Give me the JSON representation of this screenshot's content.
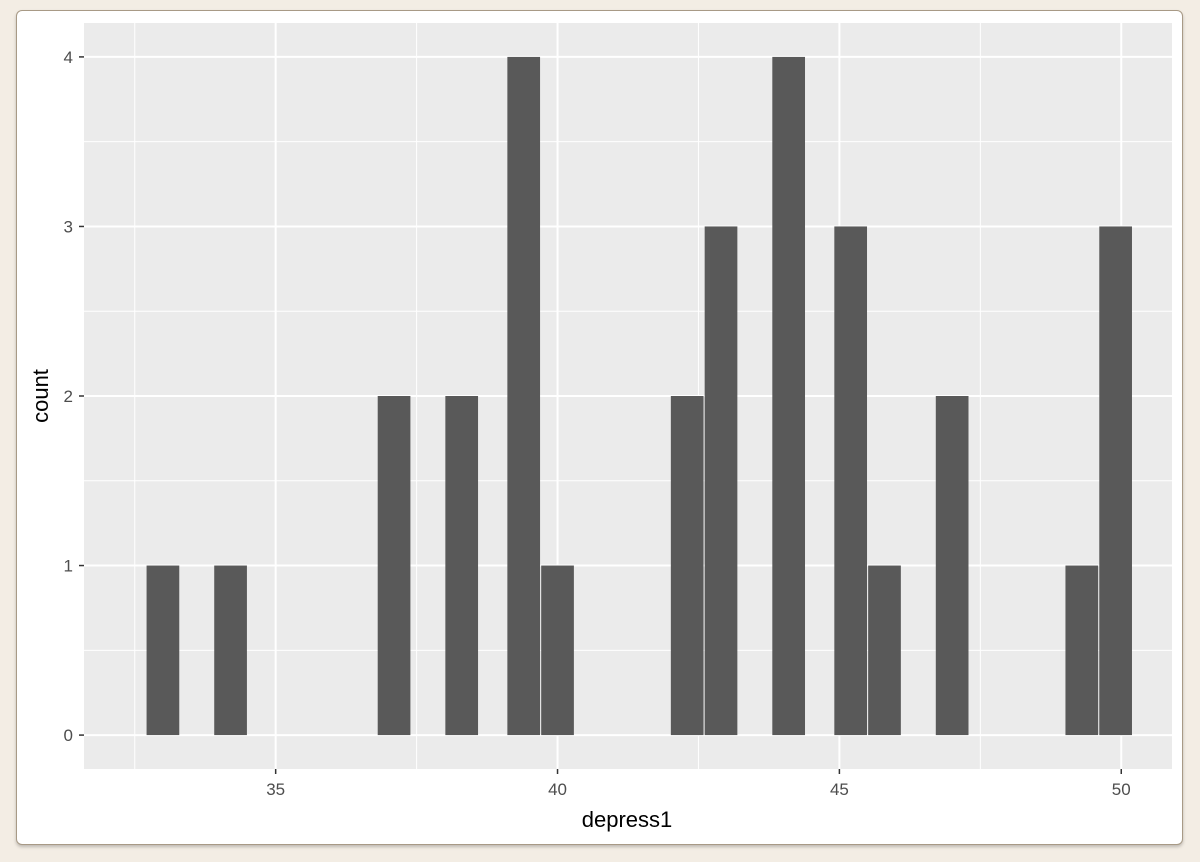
{
  "chart_data": {
    "type": "bar",
    "subtype": "histogram",
    "xlabel": "depress1",
    "ylabel": "count",
    "x_ticks": [
      35,
      40,
      45,
      50
    ],
    "y_ticks": [
      0,
      1,
      2,
      3,
      4
    ],
    "xlim": [
      31.6,
      50.9
    ],
    "ylim": [
      -0.2,
      4.2
    ],
    "bin_width": 0.58,
    "bins": [
      {
        "x": 33.0,
        "count": 1
      },
      {
        "x": 34.2,
        "count": 1
      },
      {
        "x": 37.1,
        "count": 2
      },
      {
        "x": 38.3,
        "count": 2
      },
      {
        "x": 39.4,
        "count": 4
      },
      {
        "x": 40.0,
        "count": 1
      },
      {
        "x": 42.3,
        "count": 2
      },
      {
        "x": 42.9,
        "count": 3
      },
      {
        "x": 44.1,
        "count": 4
      },
      {
        "x": 45.2,
        "count": 3
      },
      {
        "x": 45.8,
        "count": 1
      },
      {
        "x": 47.0,
        "count": 2
      },
      {
        "x": 49.3,
        "count": 1
      },
      {
        "x": 49.9,
        "count": 3
      }
    ],
    "grid": true,
    "colors": {
      "panel": "#ebebeb",
      "bar": "#595959",
      "grid": "#ffffff"
    }
  }
}
